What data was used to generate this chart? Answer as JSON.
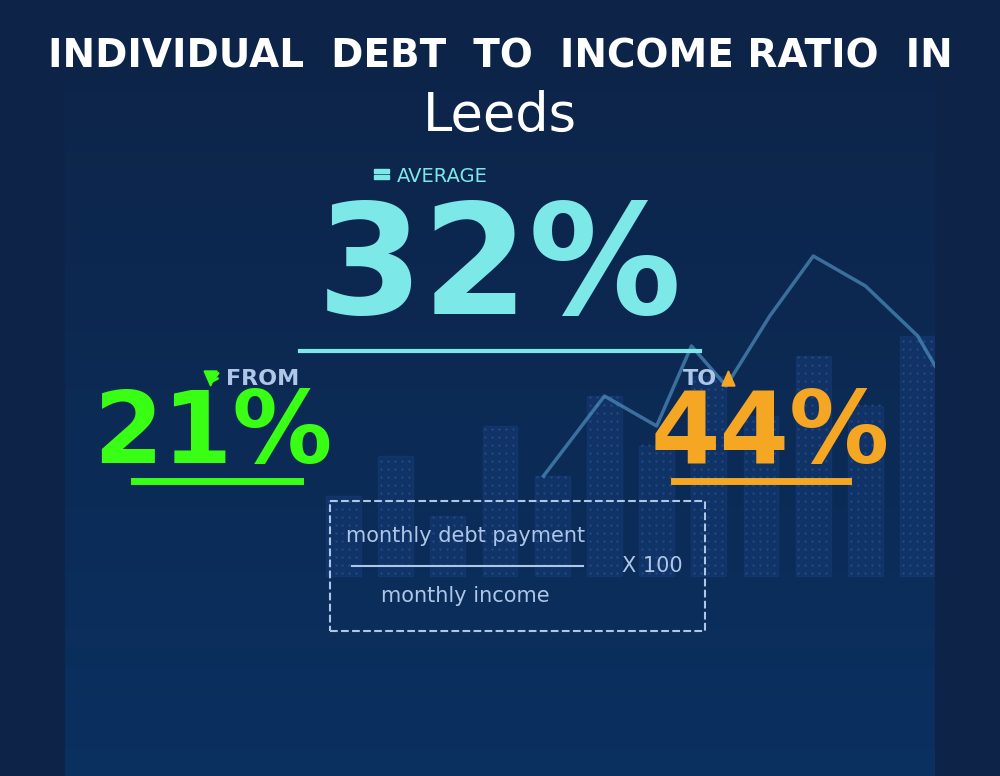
{
  "title_line1": "INDIVIDUAL  DEBT  TO  INCOME RATIO  IN",
  "title_line2": "Leeds",
  "bg_color_top": "#0d2347",
  "bg_color_bottom": "#0a3060",
  "average_label": "AVERAGE",
  "average_value": "32%",
  "average_color": "#7de8e8",
  "avg_underline_color": "#7de8e8",
  "from_label": "FROM",
  "from_value": "21%",
  "from_color": "#39ff14",
  "from_underline_color": "#39ff14",
  "to_label": "TO",
  "to_value": "44%",
  "to_color": "#f5a623",
  "to_underline_color": "#f5a623",
  "formula_numerator": "monthly debt payment",
  "formula_denominator": "monthly income",
  "formula_multiplier": "X 100",
  "formula_text_color": "#aec6e8",
  "formula_border_color": "#aec6e8",
  "title_color": "#ffffff",
  "label_color": "#aec6e8",
  "down_arrow_color": "#39ff14",
  "up_arrow_color": "#f5a623"
}
